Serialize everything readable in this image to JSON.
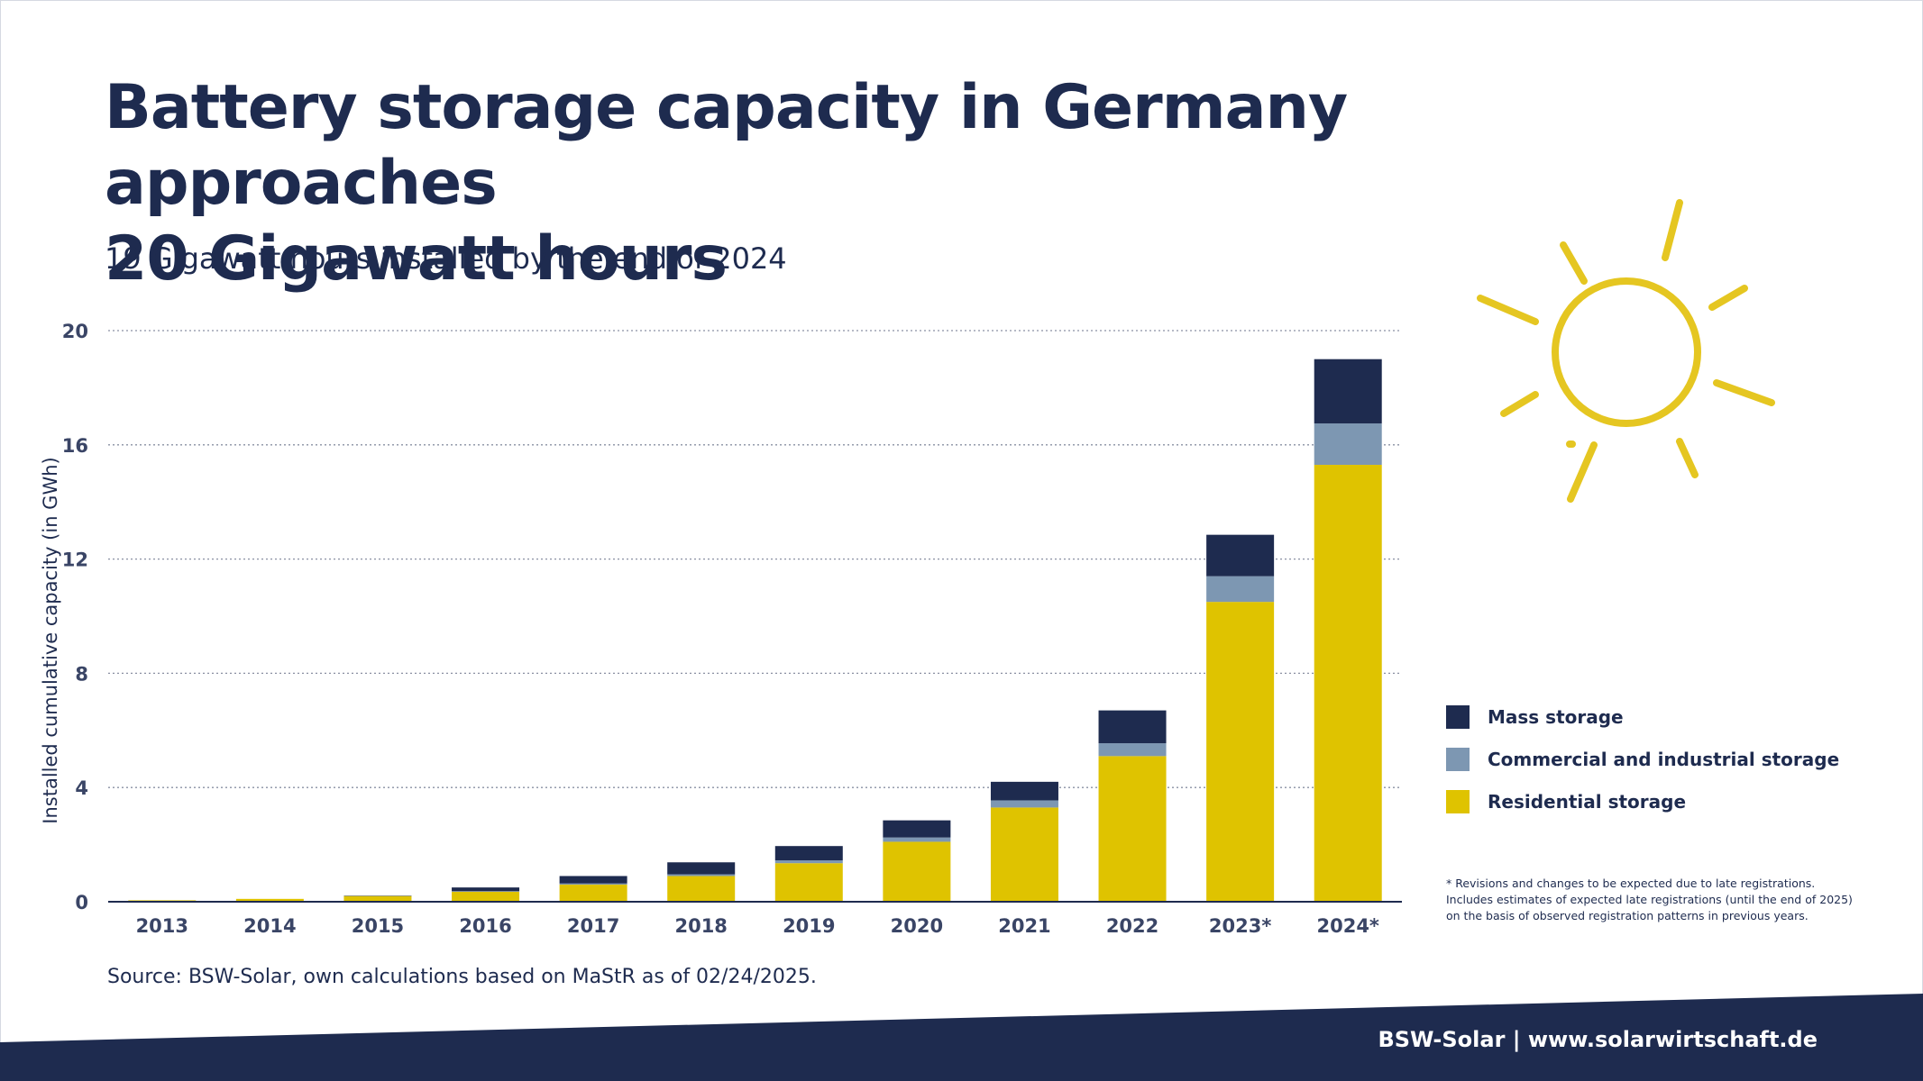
{
  "header": {
    "title_line1": "Battery storage capacity in Germany approaches",
    "title_line2": "20 Gigawatt hours",
    "subtitle": "19 Gigawatt hours installed by the end of 2024"
  },
  "chart_data": {
    "type": "bar",
    "stacked": true,
    "title": "Battery storage capacity in Germany approaches 20 Gigawatt hours",
    "subtitle": "19 Gigawatt hours installed by the end of 2024",
    "ylabel": "Installed cumulative capacity (in GWh)",
    "xlabel": "",
    "ylim": [
      0,
      20
    ],
    "yticks": [
      0,
      4,
      8,
      12,
      16,
      20
    ],
    "grid": "horizontal-dotted",
    "legend_position": "right",
    "categories": [
      "2013",
      "2014",
      "2015",
      "2016",
      "2017",
      "2018",
      "2019",
      "2020",
      "2021",
      "2022",
      "2023*",
      "2024*"
    ],
    "series": [
      {
        "name": "Residential storage",
        "color": "#dfc300",
        "values": [
          0.05,
          0.1,
          0.2,
          0.35,
          0.6,
          0.9,
          1.35,
          2.1,
          3.3,
          5.1,
          10.5,
          15.3
        ]
      },
      {
        "name": "Commercial and industrial storage",
        "color": "#7d97b2",
        "values": [
          0.0,
          0.0,
          0.01,
          0.02,
          0.04,
          0.06,
          0.1,
          0.15,
          0.25,
          0.45,
          0.9,
          1.45
        ]
      },
      {
        "name": "Mass storage",
        "color": "#1e2b4f",
        "values": [
          0.0,
          0.0,
          0.01,
          0.13,
          0.26,
          0.42,
          0.5,
          0.6,
          0.65,
          1.15,
          1.45,
          2.25
        ]
      }
    ],
    "legend_order": [
      "Mass storage",
      "Commercial and industrial storage",
      "Residential storage"
    ]
  },
  "footnote": {
    "line1": "* Revisions and changes to be expected due to late registrations.",
    "line2": "Includes estimates of expected late registrations (until the end of 2025)",
    "line3": "on the basis of observed registration patterns in previous years."
  },
  "source": "Source: BSW-Solar, own calculations based on MaStR as of 02/24/2025.",
  "footer": {
    "text": "BSW-Solar | www.solarwirtschaft.de"
  },
  "decoration": {
    "icon": "sun-icon",
    "sun_color": "#e5c621"
  },
  "colors": {
    "navy": "#1e2b4f",
    "grid": "#8a90a3"
  }
}
